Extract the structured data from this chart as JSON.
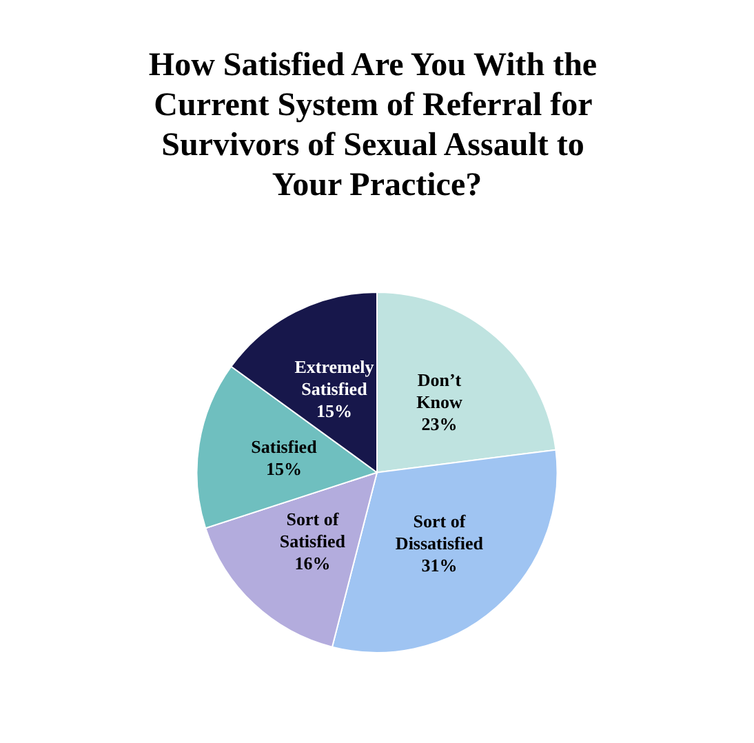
{
  "chart_data": {
    "type": "pie",
    "title": "How Satisfied Are You With the Current System of Referral for Survivors of Sexual Assault to Your Practice?",
    "categories": [
      "Don’t Know",
      "Sort of Dissatisfied",
      "Sort of Satisfied",
      "Satisfied",
      "Extremely Satisfied"
    ],
    "values": [
      23,
      31,
      16,
      15,
      15
    ],
    "colors": [
      "#bfe3e0",
      "#9fc4f2",
      "#b3acdd",
      "#6fbfbf",
      "#17174b"
    ],
    "value_labels": [
      "23%",
      "31%",
      "16%",
      "15%",
      "15%"
    ],
    "legend": false
  }
}
